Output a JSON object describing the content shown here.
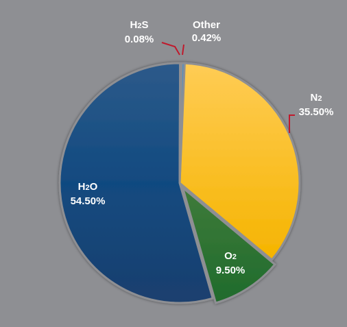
{
  "chart_data": {
    "type": "pie",
    "slices": [
      {
        "label": "N2",
        "value": 35.5,
        "display": "35.50%",
        "color": "#fcb914"
      },
      {
        "label": "O2",
        "value": 9.5,
        "display": "9.50%",
        "color": "#2c6a32"
      },
      {
        "label": "H2O",
        "value": 54.5,
        "display": "54.50%",
        "color": "#18477c"
      },
      {
        "label": "H2S",
        "value": 0.08,
        "display": "0.08%",
        "color": "#2f6aa0"
      },
      {
        "label": "Other",
        "value": 0.42,
        "display": "0.42%",
        "color": "#4f8fc4"
      }
    ],
    "background_color": "#8e8f93",
    "leader_color": "#c0192c"
  }
}
